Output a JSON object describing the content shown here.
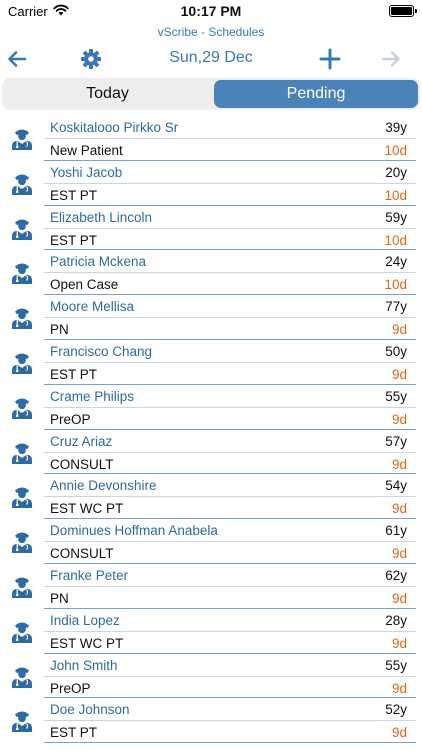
{
  "status_bar": {
    "carrier": "Carrier",
    "time": "10:17 PM"
  },
  "app": {
    "title": "vScribe - Schedules"
  },
  "nav": {
    "date": "Sun,29 Dec"
  },
  "tabs": [
    {
      "label": "Today",
      "selected": false
    },
    {
      "label": "Pending",
      "selected": true
    }
  ],
  "colors": {
    "accent": "#3a78b5",
    "selected_tab": "#4a82b9",
    "days_overdue": "#e0651c"
  },
  "patients": [
    {
      "name": "Koskitalooo Pirkko Sr",
      "age": "39y",
      "type": "New Patient",
      "days": "10d"
    },
    {
      "name": "Yoshi Jacob",
      "age": "20y",
      "type": "EST PT",
      "days": "10d"
    },
    {
      "name": "Elizabeth Lincoln",
      "age": "59y",
      "type": "EST PT",
      "days": "10d"
    },
    {
      "name": "Patricia Mckena",
      "age": "24y",
      "type": "Open Case",
      "days": "10d"
    },
    {
      "name": "Moore Mellisa",
      "age": "77y",
      "type": "PN",
      "days": "9d"
    },
    {
      "name": "Francisco Chang",
      "age": "50y",
      "type": "EST PT",
      "days": "9d"
    },
    {
      "name": "Crame Philips",
      "age": "55y",
      "type": "PreOP",
      "days": "9d"
    },
    {
      "name": "Cruz Ariaz",
      "age": "57y",
      "type": "CONSULT",
      "days": "9d"
    },
    {
      "name": "Annie Devonshire",
      "age": "54y",
      "type": "EST WC PT",
      "days": "9d"
    },
    {
      "name": "Dominues Hoffman Anabela",
      "age": "61y",
      "type": "CONSULT",
      "days": "9d"
    },
    {
      "name": "Franke Peter",
      "age": "62y",
      "type": "PN",
      "days": "9d"
    },
    {
      "name": "India Lopez",
      "age": "28y",
      "type": "EST WC PT",
      "days": "9d"
    },
    {
      "name": "John Smith",
      "age": "55y",
      "type": "PreOP",
      "days": "9d"
    },
    {
      "name": "Doe Johnson",
      "age": "52y",
      "type": "EST PT",
      "days": "9d"
    }
  ]
}
